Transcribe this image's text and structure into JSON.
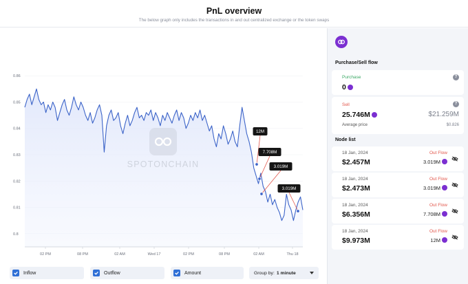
{
  "header": {
    "title": "PnL overview",
    "subtitle": "The below graph only includes the transactions in and out centralized exchange or the token swaps"
  },
  "watermark": "SPOTONCHAIN",
  "chart_data": {
    "type": "line",
    "ylim": [
      0.795,
      0.865
    ],
    "y_ticks": [
      "0.86",
      "0.85",
      "0.84",
      "0.83",
      "0.82",
      "0.81",
      "0.8"
    ],
    "x_ticks": [
      "02 PM",
      "08 PM",
      "02 AM",
      "Wed 17",
      "02 PM",
      "08 PM",
      "02 AM",
      "Thu 18"
    ],
    "series": [
      {
        "values": [
          0.848,
          0.851,
          0.853,
          0.849,
          0.852,
          0.855,
          0.851,
          0.849,
          0.85,
          0.846,
          0.849,
          0.847,
          0.85,
          0.848,
          0.843,
          0.846,
          0.849,
          0.851,
          0.847,
          0.845,
          0.848,
          0.852,
          0.849,
          0.847,
          0.85,
          0.848,
          0.845,
          0.843,
          0.846,
          0.842,
          0.844,
          0.847,
          0.849,
          0.845,
          0.831,
          0.841,
          0.845,
          0.847,
          0.843,
          0.844,
          0.846,
          0.841,
          0.838,
          0.842,
          0.845,
          0.841,
          0.843,
          0.846,
          0.848,
          0.844,
          0.845,
          0.843,
          0.846,
          0.845,
          0.847,
          0.843,
          0.846,
          0.844,
          0.841,
          0.845,
          0.843,
          0.846,
          0.844,
          0.842,
          0.845,
          0.847,
          0.843,
          0.846,
          0.844,
          0.84,
          0.842,
          0.845,
          0.843,
          0.846,
          0.844,
          0.847,
          0.843,
          0.845,
          0.842,
          0.839,
          0.841,
          0.836,
          0.833,
          0.838,
          0.836,
          0.841,
          0.838,
          0.834,
          0.836,
          0.839,
          0.835,
          0.833,
          0.841,
          0.848,
          0.843,
          0.838,
          0.835,
          0.831,
          0.825,
          0.822,
          0.819,
          0.823,
          0.818,
          0.816,
          0.812,
          0.815,
          0.811,
          0.813,
          0.81,
          0.808,
          0.805,
          0.807,
          0.815,
          0.811,
          0.809,
          0.805,
          0.809,
          0.812,
          0.814,
          0.809
        ]
      }
    ],
    "annotations": [
      "12M",
      "7.708M",
      "3.019M",
      "3.019M"
    ]
  },
  "controls": {
    "inflow_label": "Inflow",
    "outflow_label": "Outflow",
    "amount_label": "Amount",
    "groupby_label": "Group by:",
    "groupby_value": "1 minute"
  },
  "panel": {
    "flow_title": "Purchase/Sell flow",
    "purchase_label": "Purchase",
    "purchase_amount": "0",
    "sell_label": "Sell",
    "sell_amount": "25.746M",
    "sell_usd": "$21.259M",
    "avg_price_label": "Average price",
    "avg_price_value": "$0.826",
    "node_list_title": "Node list",
    "nodes": [
      {
        "date": "18 Jan, 2024",
        "usd": "$2.457M",
        "flow": "Out Flow",
        "token_amount": "3.019M"
      },
      {
        "date": "18 Jan, 2024",
        "usd": "$2.473M",
        "flow": "Out Flow",
        "token_amount": "3.019M"
      },
      {
        "date": "18 Jan, 2024",
        "usd": "$6.356M",
        "flow": "Out Flow",
        "token_amount": "7.708M"
      },
      {
        "date": "18 Jan, 2024",
        "usd": "$9.973M",
        "flow": "Out Flow",
        "token_amount": "12M"
      }
    ]
  },
  "colors": {
    "line": "#3b63c8",
    "accent_blue": "#2f6fd6",
    "token_purple": "#7b2fd1",
    "outflow_red": "#e2574c",
    "purchase_green": "#3aa864"
  }
}
